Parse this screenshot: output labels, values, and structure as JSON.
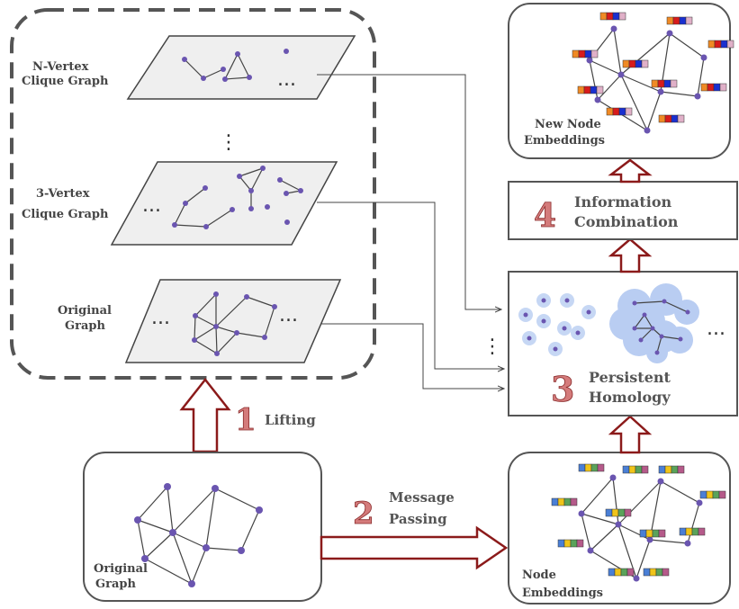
{
  "planes": {
    "n_vertex_label_1": "N-Vertex",
    "n_vertex_label_2": "Clique Graph",
    "three_vertex_label_1": "3-Vertex",
    "three_vertex_label_2": "Clique Graph",
    "original_label_1": "Original",
    "original_label_2": "Graph"
  },
  "ellipsis": "...",
  "vertical_ellipsis": "⋮",
  "steps": {
    "step1_number": "1",
    "step1_label": "Lifting",
    "step2_number": "2",
    "step2_label_1": "Message",
    "step2_label_2": "Passing",
    "step3_number": "3",
    "step3_label_1": "Persistent",
    "step3_label_2": "Homology",
    "step4_number": "4",
    "step4_label_1": "Information",
    "step4_label_2": "Combination"
  },
  "panels": {
    "original_graph_label_1": "Original",
    "original_graph_label_2": "Graph",
    "node_embeddings_label_1": "Node",
    "node_embeddings_label_2": "Embeddings",
    "new_node_embeddings_label_1": "New Node",
    "new_node_embeddings_label_2": "Embeddings"
  },
  "colors": {
    "node": "#6a55b0",
    "arrow_outline": "#8b1a1a",
    "step_number": "#d47b7b",
    "persistence_disk": "#b9cdf2",
    "embedding_old": [
      "#4a7fd6",
      "#f0c419",
      "#5aa35a",
      "#b55a8a"
    ],
    "embedding_new": [
      "#f08a24",
      "#d81b1b",
      "#1a2fd0",
      "#e0b0c8"
    ]
  }
}
